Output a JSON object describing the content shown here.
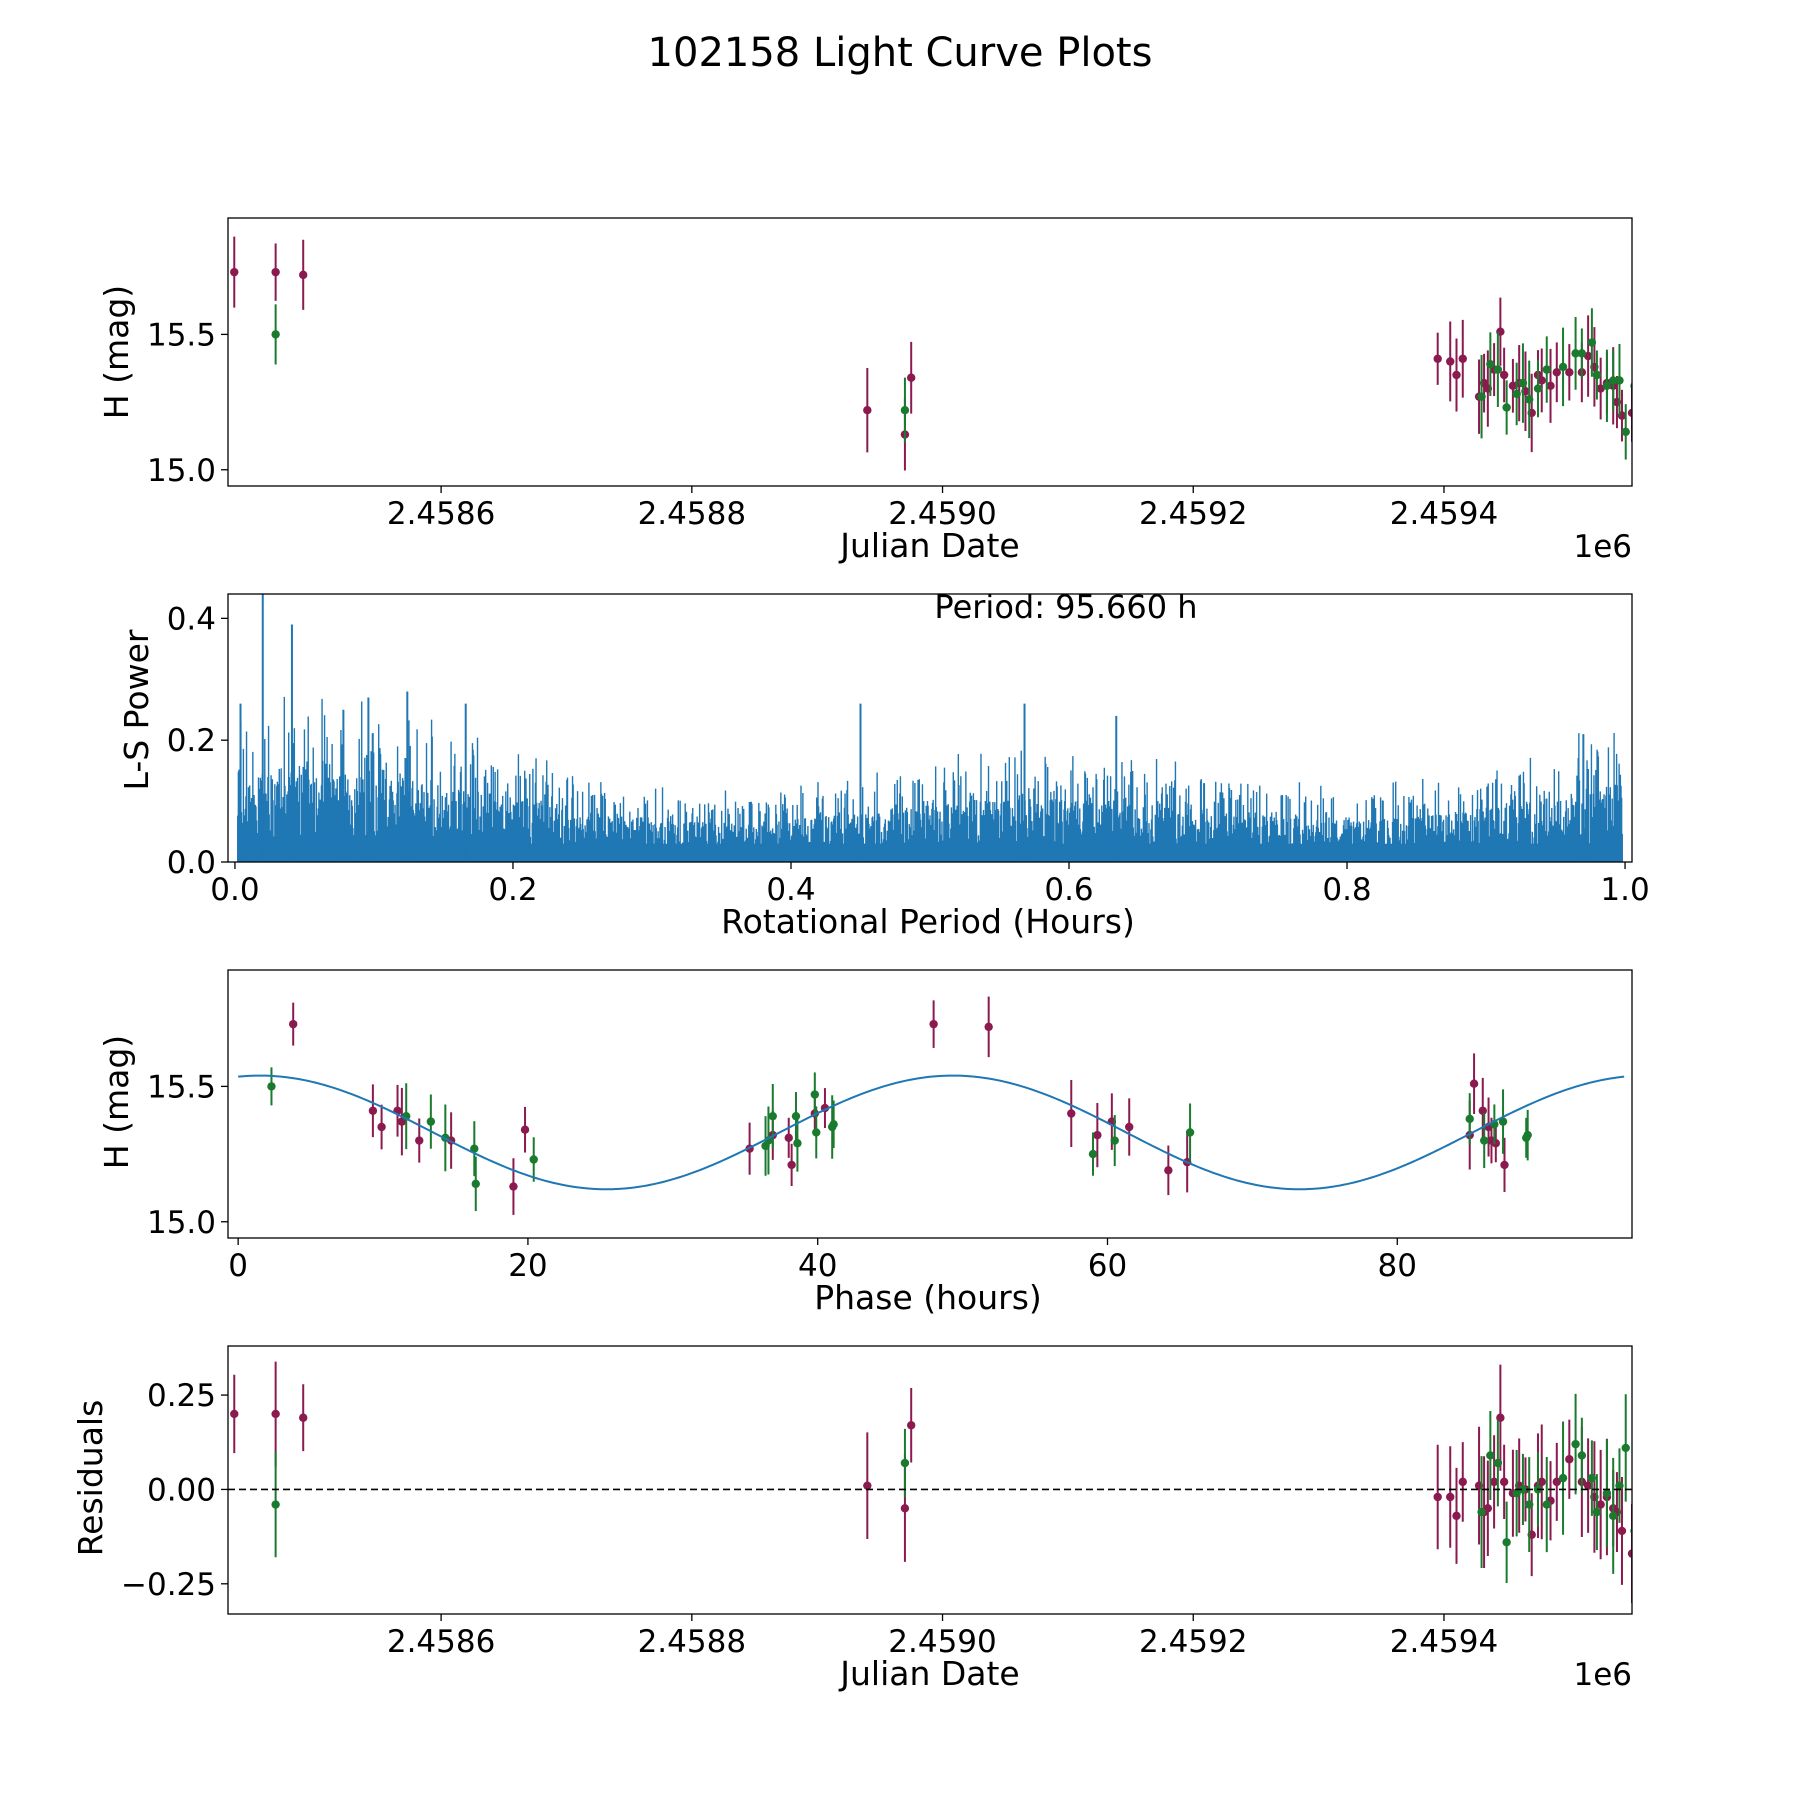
{
  "title": "102158 Light Curve Plots",
  "colors": {
    "ztf_g": "#1a7a2e",
    "ztf_r": "#8b1a4f",
    "model": "#1f77b4",
    "axis": "#000000"
  },
  "chart_data": [
    {
      "type": "scatter",
      "panel": "lightcurve",
      "xlabel": "Julian Date",
      "ylabel": "H (mag)",
      "offset_label": "1e6",
      "xlim": [
        2.45843,
        2.45955
      ],
      "ylim": [
        14.94,
        15.93
      ],
      "xticks": [
        2.4586,
        2.4588,
        2.459,
        2.4592,
        2.4594
      ],
      "xtick_labels": [
        "2.4586",
        "2.4588",
        "2.4590",
        "2.4592",
        "2.4594"
      ],
      "yticks": [
        15.0,
        15.5
      ],
      "ytick_labels": [
        "15.0",
        "15.5"
      ],
      "series": [
        {
          "name": "r",
          "color": "#8b1a4f",
          "x": [
            2.458435,
            2.458468,
            2.45849,
            2.45894,
            2.45897,
            2.458975,
            2.459395,
            2.459405,
            2.45941,
            2.459415,
            2.459428,
            2.459432,
            2.459435,
            2.45944,
            2.459445,
            2.459448,
            2.459455,
            2.45946,
            2.459465,
            2.45947,
            2.459475,
            2.459478,
            2.459485,
            2.45949,
            2.4595,
            2.45951,
            2.459515,
            2.45952,
            2.459525,
            2.45953,
            2.459535,
            2.459538,
            2.459542,
            2.45955
          ],
          "y": [
            15.73,
            15.73,
            15.72,
            15.22,
            15.13,
            15.34,
            15.41,
            15.4,
            15.35,
            15.41,
            15.27,
            15.32,
            15.3,
            15.37,
            15.51,
            15.35,
            15.31,
            15.32,
            15.29,
            15.21,
            15.35,
            15.33,
            15.31,
            15.36,
            15.36,
            15.36,
            15.42,
            15.38,
            15.3,
            15.32,
            15.31,
            15.25,
            15.2,
            15.21
          ]
        },
        {
          "name": "g",
          "color": "#1a7a2e",
          "x": [
            2.458468,
            2.45897,
            2.45943,
            2.459437,
            2.459443,
            2.45945,
            2.459458,
            2.459463,
            2.459468,
            2.459475,
            2.459482,
            2.459495,
            2.459505,
            2.45951,
            2.459518,
            2.459522,
            2.45953,
            2.459535,
            2.45954,
            2.459545,
            2.459552
          ],
          "y": [
            15.5,
            15.22,
            15.27,
            15.39,
            15.37,
            15.23,
            15.28,
            15.32,
            15.26,
            15.3,
            15.37,
            15.38,
            15.43,
            15.43,
            15.47,
            15.35,
            15.31,
            15.33,
            15.33,
            15.14,
            15.31
          ]
        }
      ]
    },
    {
      "type": "line",
      "panel": "periodogram",
      "xlabel": "Rotational Period (Hours)",
      "ylabel": "L-S Power",
      "xlim": [
        -0.005,
        1.005
      ],
      "ylim": [
        0.0,
        0.44
      ],
      "xticks": [
        0.0,
        0.2,
        0.4,
        0.6,
        0.8,
        1.0
      ],
      "xtick_labels": [
        "0.0",
        "0.2",
        "0.4",
        "0.6",
        "0.8",
        "1.0"
      ],
      "yticks": [
        0.0,
        0.2,
        0.4
      ],
      "ytick_labels": [
        "0.0",
        "0.2",
        "0.4"
      ],
      "annotation": "Period: 95.660 h",
      "peaks": {
        "x": [
          0.004,
          0.02,
          0.041,
          0.078,
          0.096,
          0.124,
          0.166,
          0.45,
          0.568,
          0.634,
          0.97
        ],
        "y": [
          0.26,
          0.44,
          0.39,
          0.25,
          0.27,
          0.28,
          0.26,
          0.26,
          0.26,
          0.24,
          0.21
        ]
      }
    },
    {
      "type": "scatter",
      "panel": "phased",
      "xlabel": "Phase (hours)",
      "ylabel": "H (mag)",
      "xlim": [
        -0.7,
        96.2
      ],
      "ylim": [
        14.94,
        15.93
      ],
      "xticks": [
        0,
        20,
        40,
        60,
        80
      ],
      "xtick_labels": [
        "0",
        "20",
        "40",
        "60",
        "80"
      ],
      "yticks": [
        15.0,
        15.5
      ],
      "ytick_labels": [
        "15.0",
        "15.5"
      ],
      "model": {
        "period": 95.66,
        "mean": 15.33,
        "amplitude": 0.21,
        "peak_phase": 1.5
      },
      "series": [
        {
          "name": "r",
          "color": "#8b1a4f",
          "x": [
            3.8,
            9.3,
            9.9,
            11.0,
            11.3,
            12.5,
            14.7,
            19.0,
            19.8,
            35.3,
            36.9,
            38.0,
            38.2,
            39.8,
            40.5,
            48.0,
            51.8,
            57.5,
            59.3,
            60.3,
            61.5,
            64.2,
            65.5,
            85.0,
            85.3,
            85.9,
            86.3,
            86.5,
            86.8,
            87.4
          ],
          "y": [
            15.73,
            15.41,
            15.35,
            15.41,
            15.37,
            15.3,
            15.3,
            15.13,
            15.34,
            15.27,
            15.32,
            15.31,
            15.21,
            15.4,
            15.42,
            15.73,
            15.72,
            15.4,
            15.32,
            15.37,
            15.35,
            15.19,
            15.22,
            15.32,
            15.51,
            15.41,
            15.35,
            15.3,
            15.29,
            15.21
          ]
        },
        {
          "name": "g",
          "color": "#1a7a2e",
          "x": [
            2.3,
            11.6,
            13.3,
            14.3,
            16.3,
            16.4,
            20.4,
            36.4,
            36.6,
            36.9,
            38.5,
            38.6,
            39.8,
            39.9,
            41.0,
            41.1,
            59.0,
            60.5,
            65.7,
            85.0,
            86.0,
            86.7,
            87.3,
            88.9,
            89.0
          ],
          "y": [
            15.5,
            15.39,
            15.37,
            15.31,
            15.27,
            15.14,
            15.23,
            15.28,
            15.3,
            15.39,
            15.39,
            15.29,
            15.47,
            15.33,
            15.35,
            15.36,
            15.25,
            15.3,
            15.33,
            15.38,
            15.3,
            15.36,
            15.37,
            15.31,
            15.32
          ]
        }
      ]
    },
    {
      "type": "scatter",
      "panel": "residuals",
      "xlabel": "Julian Date",
      "ylabel": "Residuals",
      "offset_label": "1e6",
      "xlim": [
        2.45843,
        2.45955
      ],
      "ylim": [
        -0.33,
        0.38
      ],
      "xticks": [
        2.4586,
        2.4588,
        2.459,
        2.4592,
        2.4594
      ],
      "xtick_labels": [
        "2.4586",
        "2.4588",
        "2.4590",
        "2.4592",
        "2.4594"
      ],
      "yticks": [
        0.25,
        0.0,
        -0.25
      ],
      "ytick_labels": [
        "0.25",
        "0.00",
        "−0.25"
      ],
      "reference_line": 0.0,
      "series": [
        {
          "name": "r",
          "color": "#8b1a4f",
          "x": [
            2.458435,
            2.458468,
            2.45849,
            2.45894,
            2.45897,
            2.458975,
            2.459395,
            2.459405,
            2.45941,
            2.459415,
            2.459428,
            2.459432,
            2.459435,
            2.45944,
            2.459445,
            2.459448,
            2.459455,
            2.45946,
            2.459465,
            2.45947,
            2.459475,
            2.459478,
            2.459485,
            2.45949,
            2.4595,
            2.45951,
            2.459515,
            2.45952,
            2.459525,
            2.45953,
            2.459535,
            2.459538,
            2.459542,
            2.45955
          ],
          "y": [
            0.2,
            0.2,
            0.19,
            0.01,
            -0.05,
            0.17,
            -0.02,
            -0.02,
            -0.07,
            0.02,
            0.01,
            -0.06,
            -0.05,
            0.02,
            0.19,
            0.02,
            -0.01,
            0.01,
            0.0,
            -0.12,
            0.01,
            0.02,
            -0.03,
            0.02,
            0.08,
            0.02,
            0.01,
            -0.02,
            -0.04,
            -0.02,
            -0.05,
            -0.06,
            -0.11,
            -0.17
          ]
        },
        {
          "name": "g",
          "color": "#1a7a2e",
          "x": [
            2.458468,
            2.45897,
            2.45943,
            2.459437,
            2.459443,
            2.45945,
            2.459458,
            2.459463,
            2.459468,
            2.459475,
            2.459482,
            2.459495,
            2.459505,
            2.45951,
            2.459518,
            2.459522,
            2.45953,
            2.459535,
            2.45954,
            2.459545,
            2.459552
          ],
          "y": [
            -0.04,
            0.07,
            -0.06,
            0.09,
            0.07,
            -0.14,
            -0.01,
            0.0,
            -0.04,
            0.0,
            -0.04,
            0.03,
            0.12,
            0.09,
            0.03,
            -0.06,
            -0.01,
            -0.07,
            0.01,
            0.11,
            -0.11
          ]
        }
      ]
    }
  ]
}
